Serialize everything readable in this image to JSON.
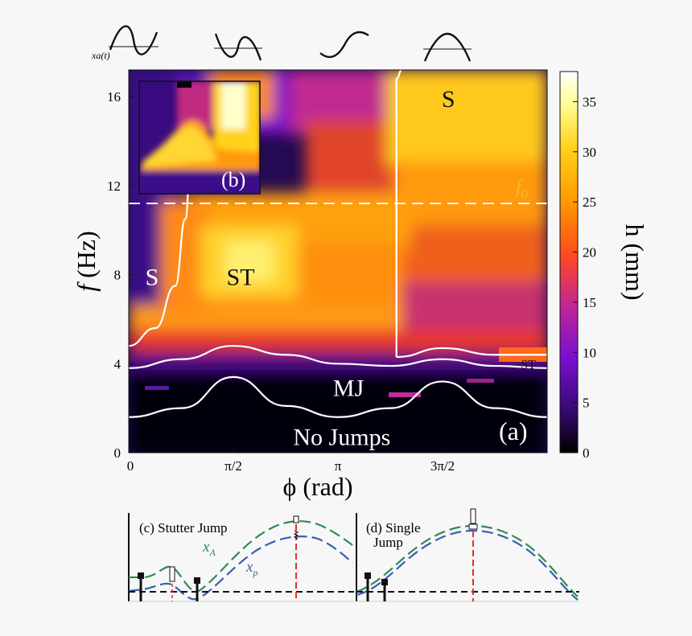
{
  "chart_data": {
    "type": "heatmap",
    "title": "",
    "xlabel": "ϕ (rad)",
    "ylabel": "f (Hz)",
    "xlim": [
      0,
      6.2832
    ],
    "ylim": [
      0,
      17.2
    ],
    "x_ticks": [
      {
        "value": 0,
        "label": "0"
      },
      {
        "value": 1.5708,
        "label": "π/2"
      },
      {
        "value": 3.1416,
        "label": "π"
      },
      {
        "value": 4.7124,
        "label": "3π/2"
      }
    ],
    "y_ticks": [
      {
        "value": 0,
        "label": "0"
      },
      {
        "value": 4,
        "label": "4"
      },
      {
        "value": 8,
        "label": "8"
      },
      {
        "value": 12,
        "label": "12"
      },
      {
        "value": 16,
        "label": "16"
      }
    ],
    "colorbar": {
      "label": "h (mm)",
      "range": [
        0,
        38
      ],
      "ticks": [
        0,
        5,
        10,
        15,
        20,
        25,
        30,
        35
      ],
      "colormap": "inferno-like",
      "stops": [
        "#000000",
        "#3a0a7a",
        "#7a0fd0",
        "#c0249a",
        "#ff4a1e",
        "#ff9a00",
        "#ffd21a",
        "#ffff9a",
        "#ffffff"
      ]
    },
    "reference_line": {
      "label": "f0",
      "value": 11.2
    },
    "regions": [
      {
        "label": "S",
        "phi": 0.35,
        "f": 7.9
      },
      {
        "label": "ST",
        "phi": 1.68,
        "f": 7.9
      },
      {
        "label": "S",
        "phi": 4.8,
        "f": 15.9
      },
      {
        "label": "ST",
        "phi": 6.0,
        "f": 4.0
      },
      {
        "label": "MJ",
        "phi": 3.3,
        "f": 2.9
      },
      {
        "label": "No Jumps",
        "phi": 3.2,
        "f": 0.7
      }
    ],
    "boundaries": [
      {
        "name": "no-jumps / MJ",
        "phi": [
          0,
          0.79,
          1.57,
          2.36,
          3.14,
          3.93,
          4.71,
          5.5,
          6.28
        ],
        "f": [
          1.6,
          2.0,
          3.4,
          2.1,
          1.6,
          2.0,
          3.2,
          2.0,
          1.6
        ]
      },
      {
        "name": "MJ / ST",
        "phi": [
          0,
          0.79,
          1.57,
          2.36,
          3.14,
          3.93,
          4.71,
          5.5,
          6.28
        ],
        "f": [
          3.8,
          4.2,
          4.8,
          4.4,
          4.0,
          3.9,
          4.2,
          3.9,
          3.8
        ]
      },
      {
        "name": "S / ST left",
        "phi": [
          0,
          0.4,
          0.7,
          0.85,
          0.93
        ],
        "f": [
          4.8,
          5.6,
          7.5,
          10.5,
          13.0
        ]
      },
      {
        "name": "ST / S right",
        "phi": [
          4.02,
          4.02,
          4.1
        ],
        "f": [
          4.3,
          16.8,
          17.2
        ]
      },
      {
        "name": "ST upper-right",
        "phi": [
          4.02,
          4.71,
          5.5,
          6.28
        ],
        "f": [
          4.3,
          4.7,
          4.4,
          4.4
        ]
      }
    ],
    "series_labels": {
      "xa": "x",
      "xa_sub": "A",
      "xp": "x",
      "xp_sub": "p"
    }
  },
  "labels": {
    "top_signal": "xa(t)",
    "panel_a": "(a)",
    "panel_b": "(b)",
    "panel_c": "(c) Stutter Jump",
    "panel_d_line1": "(d) Single",
    "panel_d_line2": "Jump",
    "f0": "f",
    "f0_sub": "0",
    "xlabel": "ϕ (rad)",
    "ylabel_f": "f",
    "ylabel_hz": " (Hz)",
    "cbar_label": "h (mm)"
  },
  "colors": {
    "xA": "#2e8b57",
    "xp": "#3a5fb0",
    "marker": "#e03030",
    "boundary": "#ffffff"
  }
}
